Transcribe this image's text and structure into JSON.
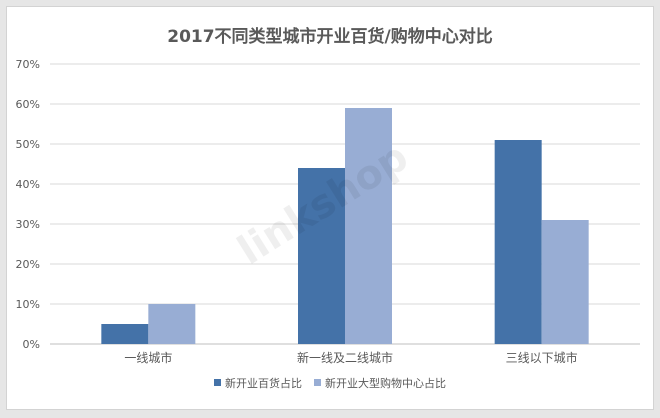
{
  "chart_data": {
    "type": "bar",
    "title": "2017不同类型城市开业百货/购物中心对比",
    "categories": [
      "一线城市",
      "新一线及二线城市",
      "三线以下城市"
    ],
    "series": [
      {
        "name": "新开业百货占比",
        "values": [
          5,
          44,
          51
        ],
        "color": "#4472a8"
      },
      {
        "name": "新开业大型购物中心占比",
        "values": [
          10,
          59,
          31
        ],
        "color": "#98add4"
      }
    ],
    "ylim": [
      0,
      70
    ],
    "yticks": [
      "0%",
      "10%",
      "20%",
      "30%",
      "40%",
      "50%",
      "60%",
      "70%"
    ],
    "grid": true,
    "legend": "bottom"
  },
  "watermark": "linkshop"
}
